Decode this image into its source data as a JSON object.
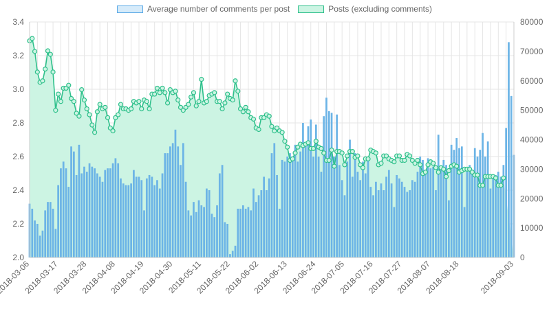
{
  "legend": {
    "comments_label": "Average number of comments per post",
    "posts_label": "Posts (excluding comments)"
  },
  "colors": {
    "bar_fill": "#6cb4e6",
    "bar_legend_fill": "#d6ebfa",
    "bar_legend_stroke": "#5aa9e6",
    "area_fill": "#ccf4e3",
    "line_stroke": "#2ec08b",
    "grid": "#e5e5e5",
    "tick_text": "#666666"
  },
  "chart_data": {
    "type": "bar+area",
    "left_axis": {
      "series": "Average number of comments per post",
      "ylim": [
        2.0,
        3.4
      ],
      "ticks": [
        "2.0",
        "2.2",
        "2.4",
        "2.6",
        "2.8",
        "3.0",
        "3.2",
        "3.4"
      ]
    },
    "right_axis": {
      "series": "Posts (excluding comments)",
      "ylim": [
        0,
        80000
      ],
      "ticks": [
        "0",
        "10000",
        "20000",
        "30000",
        "40000",
        "50000",
        "60000",
        "70000",
        "80000"
      ]
    },
    "x_tick_labels": [
      "2018-03-06",
      "2018-03-17",
      "2018-03-28",
      "2018-04-08",
      "2018-04-19",
      "2018-04-30",
      "2018-05-11",
      "2018-05-22",
      "2018-06-02",
      "2018-06-13",
      "2018-06-24",
      "2018-07-05",
      "2018-07-16",
      "2018-07-27",
      "2018-08-07",
      "2018-08-18",
      "2018-09-03"
    ],
    "grid": true,
    "legend_position": "top",
    "series": [
      {
        "name": "Average number of comments per post",
        "type": "bar",
        "axis": "left",
        "values": [
          2.32,
          2.29,
          2.22,
          2.2,
          2.13,
          2.16,
          2.28,
          2.33,
          2.33,
          2.29,
          2.17,
          2.43,
          2.53,
          2.57,
          2.53,
          2.42,
          2.66,
          2.63,
          2.49,
          2.67,
          2.5,
          2.54,
          2.51,
          2.56,
          2.54,
          2.53,
          2.5,
          2.48,
          2.45,
          2.52,
          2.53,
          2.53,
          2.56,
          2.59,
          2.56,
          2.47,
          2.44,
          2.43,
          2.43,
          2.44,
          2.52,
          2.48,
          2.48,
          2.46,
          2.28,
          2.47,
          2.49,
          2.48,
          2.43,
          2.46,
          2.41,
          2.5,
          2.62,
          2.62,
          2.66,
          2.68,
          2.76,
          2.66,
          2.55,
          2.68,
          2.45,
          2.28,
          2.25,
          2.33,
          2.27,
          2.34,
          2.31,
          2.3,
          2.41,
          2.4,
          2.26,
          2.24,
          2.31,
          2.5,
          2.55,
          2.21,
          2.2,
          2.02,
          2.04,
          2.07,
          2.29,
          2.29,
          2.31,
          2.29,
          2.3,
          2.28,
          2.41,
          2.33,
          2.37,
          2.4,
          2.48,
          2.4,
          2.47,
          2.62,
          2.68,
          2.49,
          2.29,
          2.58,
          2.57,
          2.6,
          2.62,
          2.6,
          2.67,
          2.57,
          2.63,
          2.8,
          2.66,
          2.78,
          2.82,
          2.6,
          2.79,
          2.6,
          2.51,
          2.84,
          2.95,
          2.87,
          2.86,
          2.6,
          2.85,
          2.55,
          2.46,
          2.37,
          2.57,
          2.7,
          2.48,
          2.62,
          2.51,
          2.46,
          2.57,
          2.5,
          2.6,
          2.42,
          2.37,
          2.45,
          2.4,
          2.44,
          2.4,
          2.48,
          2.52,
          2.44,
          2.3,
          2.49,
          2.47,
          2.45,
          2.42,
          2.39,
          2.4,
          2.46,
          2.45,
          2.51,
          2.6,
          2.58,
          2.52,
          2.59,
          2.53,
          2.54,
          2.4,
          2.73,
          2.53,
          2.58,
          2.55,
          2.34,
          2.67,
          2.64,
          2.71,
          2.65,
          2.66,
          2.3,
          2.51,
          2.55,
          2.5,
          2.65,
          2.6,
          2.64,
          2.74,
          2.6,
          2.69,
          2.41,
          2.48,
          2.49,
          2.51,
          2.48,
          2.55,
          2.77,
          3.28,
          2.96,
          2.61
        ]
      },
      {
        "name": "Posts (excluding comments)",
        "type": "area-line",
        "axis": "right",
        "values": [
          73600,
          74400,
          70000,
          63000,
          59500,
          60000,
          64000,
          70200,
          69000,
          63000,
          50000,
          55500,
          53000,
          57500,
          57500,
          58500,
          54000,
          53000,
          49000,
          48000,
          57000,
          53500,
          50500,
          48500,
          45000,
          42500,
          49500,
          52000,
          50500,
          51000,
          47500,
          44000,
          43000,
          47500,
          48500,
          52000,
          50500,
          50500,
          50000,
          50500,
          53000,
          52500,
          53000,
          50500,
          53500,
          53000,
          50500,
          55500,
          55500,
          57500,
          56000,
          57500,
          56000,
          52500,
          57000,
          56000,
          56500,
          53500,
          51000,
          50000,
          51000,
          52000,
          54500,
          56000,
          51500,
          53000,
          60500,
          52500,
          53000,
          55000,
          55500,
          56000,
          53000,
          53000,
          50500,
          52500,
          55500,
          54000,
          53500,
          60000,
          56500,
          50500,
          49500,
          51000,
          49500,
          47500,
          47000,
          44000,
          43500,
          47500,
          47500,
          48500,
          48000,
          44500,
          43000,
          44000,
          43000,
          42500,
          39500,
          37500,
          33000,
          33500,
          35500,
          37500,
          38500,
          38000,
          38500,
          39000,
          37000,
          37000,
          39500,
          37500,
          37000,
          35500,
          33000,
          33000,
          36500,
          31000,
          36000,
          36000,
          35500,
          31500,
          34500,
          36000,
          36000,
          34000,
          34500,
          31500,
          30500,
          33500,
          33500,
          36500,
          36000,
          35500,
          31500,
          32000,
          34500,
          34500,
          33500,
          33000,
          32500,
          34500,
          34500,
          33000,
          33000,
          35000,
          34500,
          33000,
          32000,
          33000,
          31500,
          28500,
          29000,
          31500,
          32500,
          32000,
          30500,
          29000,
          30500,
          30000,
          27500,
          29500,
          31000,
          31500,
          31000,
          29000,
          29500,
          30000,
          30000,
          30000,
          29000,
          28000,
          28000,
          24500,
          24500,
          27500,
          27500,
          27500,
          27500,
          27000,
          24500,
          24500,
          27000
        ]
      }
    ]
  }
}
